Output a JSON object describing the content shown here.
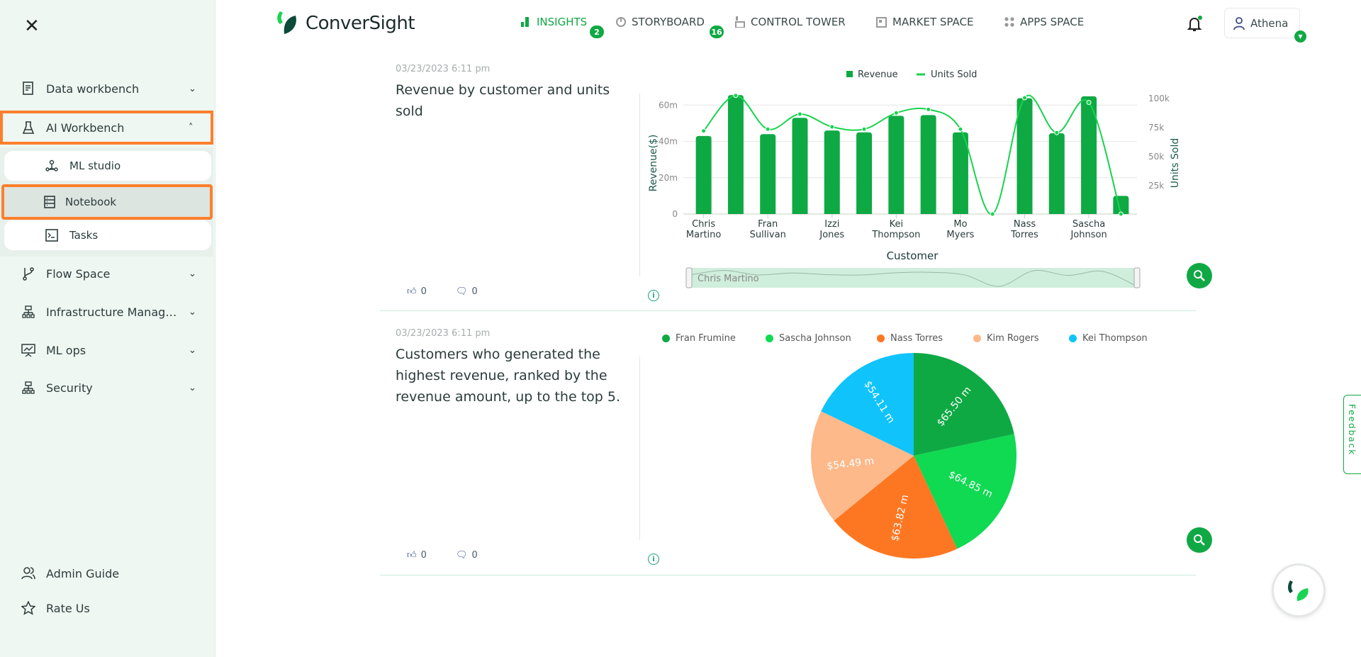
{
  "sidebar": {
    "items": [
      {
        "label": "Data workbench",
        "icon": "data-workbench-icon"
      },
      {
        "label": "AI Workbench",
        "icon": "flask-icon",
        "expanded": true
      },
      {
        "label": "Flow Space",
        "icon": "branch-icon"
      },
      {
        "label": "Infrastructure Management",
        "icon": "network-icon"
      },
      {
        "label": "ML ops",
        "icon": "presentation-chart-icon"
      },
      {
        "label": "Security",
        "icon": "network-icon"
      }
    ],
    "sub_items": [
      {
        "label": "ML studio",
        "icon": "nodes-icon"
      },
      {
        "label": "Notebook",
        "icon": "notebook-icon",
        "selected": true
      },
      {
        "label": "Tasks",
        "icon": "terminal-icon"
      }
    ],
    "footer": [
      {
        "label": "Admin Guide",
        "icon": "users-icon"
      },
      {
        "label": "Rate Us",
        "icon": "star-icon"
      }
    ]
  },
  "header": {
    "logo": "ConverSight",
    "nav": [
      {
        "label": "INSIGHTS",
        "badge": "2",
        "active": true
      },
      {
        "label": "STORYBOARD",
        "badge": "16"
      },
      {
        "label": "CONTROL TOWER"
      },
      {
        "label": "MARKET SPACE"
      },
      {
        "label": "APPS SPACE"
      }
    ],
    "user": "Athena"
  },
  "colors": {
    "accent": "#10a844",
    "highlight": "#fd7f2c",
    "bar": "#0fa944",
    "line": "#18d34f"
  },
  "cards": [
    {
      "date": "03/23/2023 6:11 pm",
      "title": "Revenue by customer and units sold",
      "likes": "0",
      "comments": "0"
    },
    {
      "date": "03/23/2023 6:11 pm",
      "title": "Customers who generated the highest revenue, ranked by the revenue amount, up to the top 5.",
      "likes": "0",
      "comments": "0"
    }
  ],
  "feedback": "Feedback",
  "chart_data": [
    {
      "type": "bar",
      "legend": [
        "Revenue",
        "Units Sold"
      ],
      "xlabel": "Customer",
      "ylabel": "Revenue($)",
      "y2label": "Units Sold",
      "categories": [
        "Chris Martino",
        "",
        "Fran Sullivan",
        "",
        "Izzi Jones",
        "",
        "Kei Thompson",
        "",
        "Mo Myers",
        "",
        "Nass Torres",
        "",
        "Sascha Johnson",
        ""
      ],
      "yticks": [
        "0",
        "20m",
        "40m",
        "60m"
      ],
      "y2ticks": [
        "25k",
        "50k",
        "75k",
        "100k"
      ],
      "ylim": [
        0,
        64
      ],
      "y2lim": [
        0,
        100000
      ],
      "navigator_label": "Chris Martino",
      "series": [
        {
          "name": "Revenue",
          "type": "bar",
          "values": [
            43,
            65.5,
            44,
            53,
            46,
            45,
            54.1,
            54.5,
            45,
            0,
            63.8,
            44.5,
            64.85,
            10
          ]
        },
        {
          "name": "Units Sold",
          "type": "line",
          "values": [
            71500,
            102000,
            73000,
            86000,
            75000,
            73000,
            87000,
            90000,
            73000,
            0,
            100000,
            70000,
            96000,
            0
          ]
        }
      ]
    },
    {
      "type": "pie",
      "labels": [
        "Fran Frumine",
        "Sascha Johnson",
        "Nass Torres",
        "Kim Rogers",
        "Kei Thompson"
      ],
      "values": [
        65.5,
        64.85,
        63.82,
        54.49,
        54.11
      ],
      "data_labels": [
        "$65.50 m",
        "$64.85 m",
        "$63.82 m",
        "$54.49 m",
        "$54.11 m"
      ],
      "colors": [
        "#0fa944",
        "#10d952",
        "#fd7722",
        "#fdb98a",
        "#10c3fa"
      ],
      "legend_position": "top"
    }
  ]
}
